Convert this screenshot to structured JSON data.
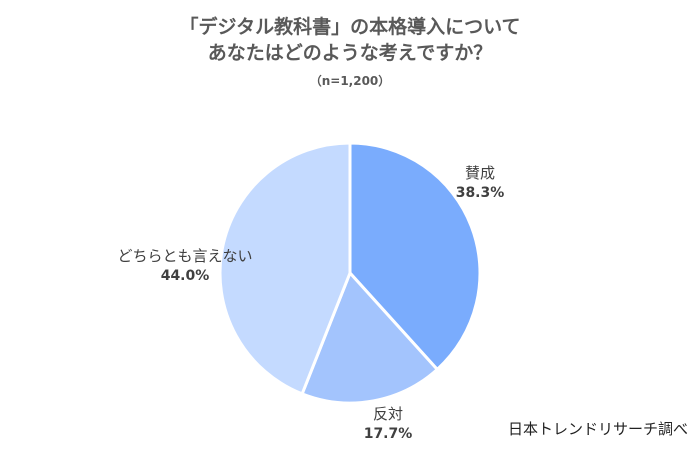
{
  "chart_data": {
    "type": "pie",
    "title_lines": [
      "「デジタル教科書」の本格導入について",
      "あなたはどのような考えですか？"
    ],
    "subtitle": "（n=1,200）",
    "slices": [
      {
        "label": "賛成",
        "value": 38.3,
        "display": "38.3%",
        "color": "#7aacfd"
      },
      {
        "label": "反対",
        "value": 17.7,
        "display": "17.7%",
        "color": "#a3c4fd"
      },
      {
        "label": "どちらとも言えない",
        "value": 44.0,
        "display": "44.0%",
        "color": "#c4daff"
      }
    ],
    "legend": "none"
  },
  "credit": "日本トレンドリサーチ調べ"
}
